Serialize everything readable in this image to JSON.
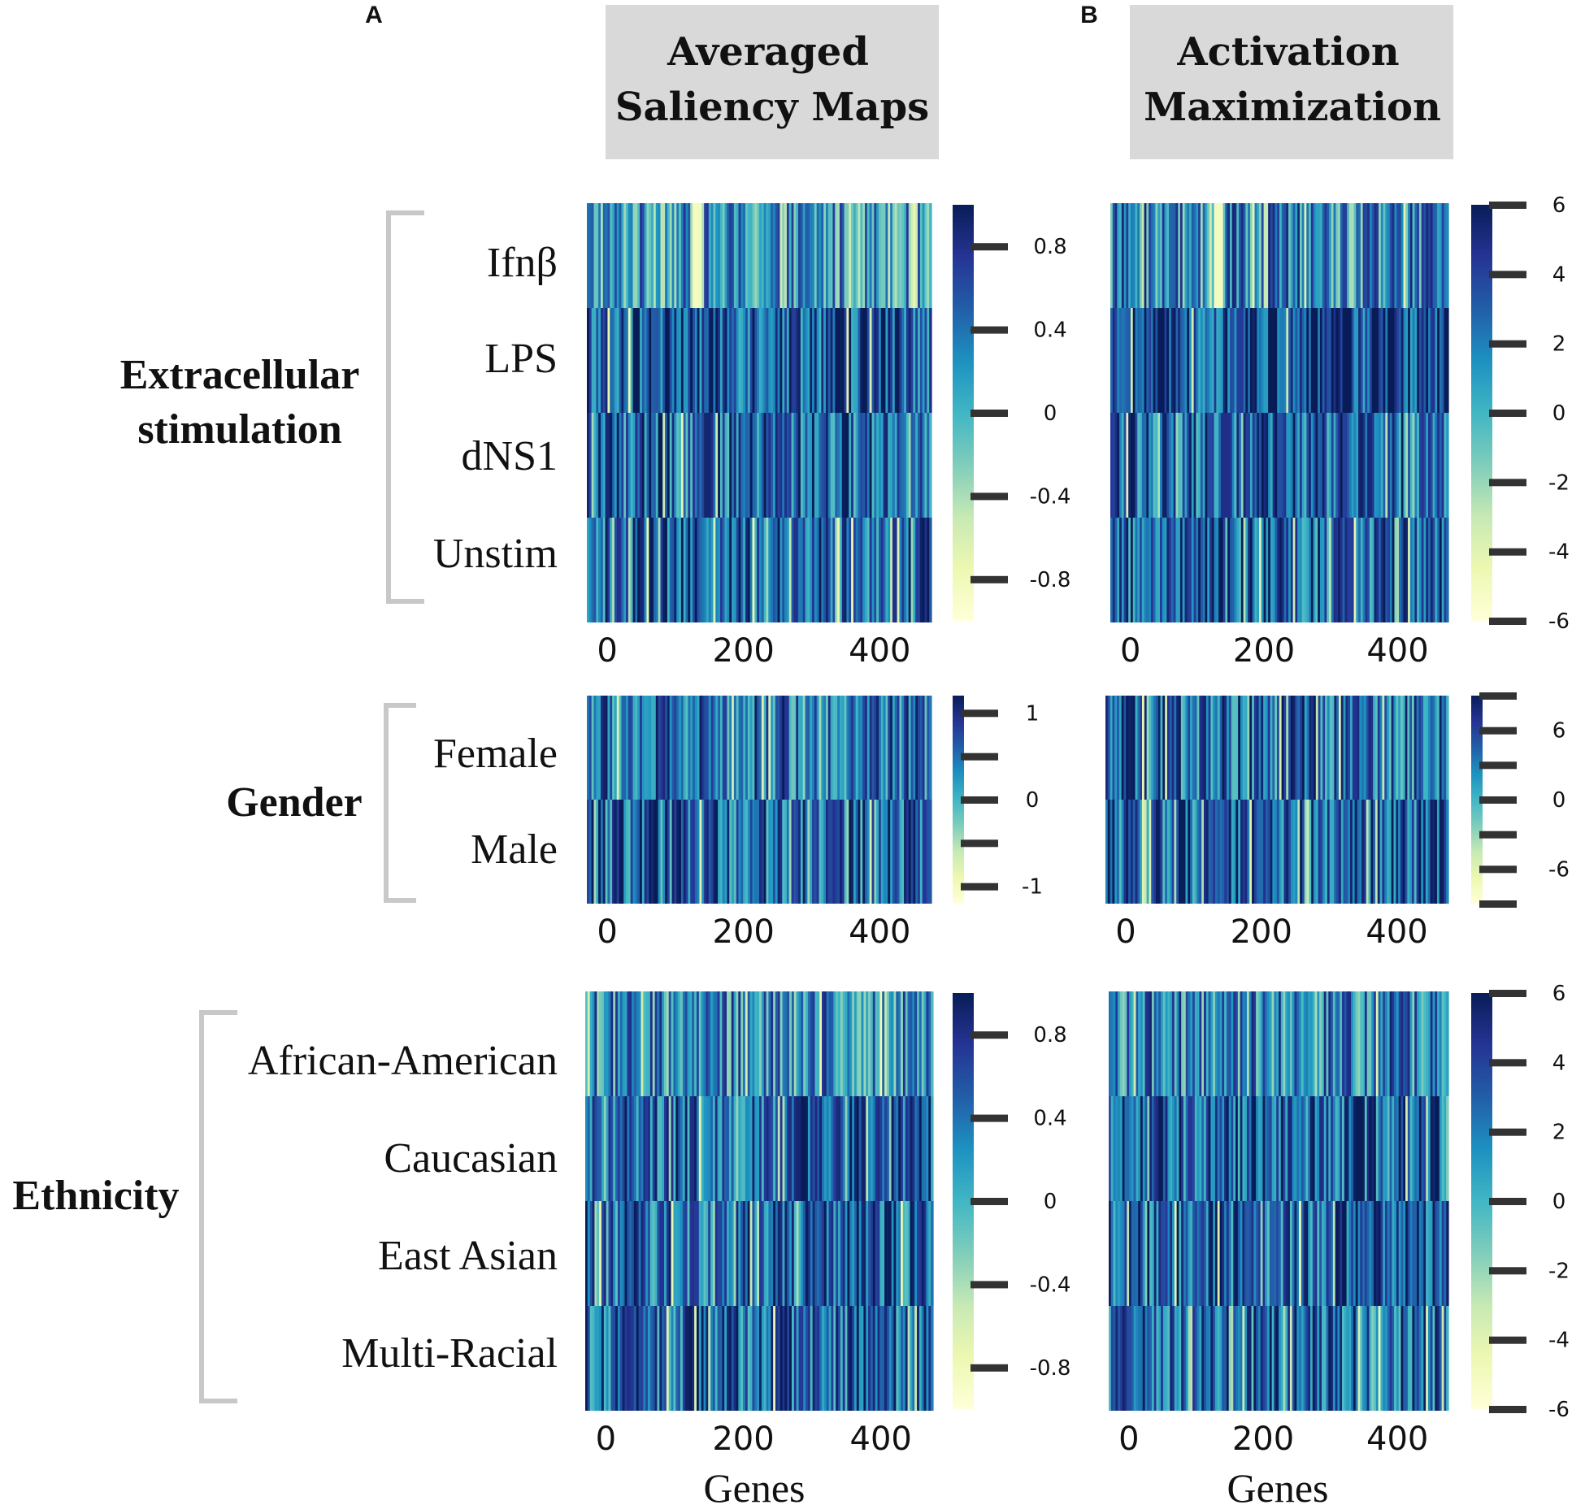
{
  "panel_letters": {
    "a": "A",
    "b": "B"
  },
  "column_titles": {
    "a_line1": "Averaged",
    "a_line2": "Saliency Maps",
    "b_line1": "Activation",
    "b_line2": "Maximization"
  },
  "groups": {
    "stim": "Extracellular stimulation",
    "stim_line1": "Extracellular",
    "stim_line2": "stimulation",
    "gender": "Gender",
    "ethnicity": "Ethnicity"
  },
  "colors": {
    "ylgnbu": [
      "#ffffd9",
      "#edf8b1",
      "#c7e9b4",
      "#7fcdbb",
      "#41b6c4",
      "#1d91c0",
      "#225ea8",
      "#253494",
      "#081d58"
    ],
    "bracket": "#c8c8c8",
    "title_box": "#d9d9d9"
  },
  "chart_data": [
    {
      "panel": "A",
      "type": "heatmap",
      "group": "Extracellular stimulation",
      "title": "Averaged Saliency Maps",
      "rows": [
        "Ifnβ",
        "LPS",
        "dNS1",
        "Unstim"
      ],
      "xlabel": "",
      "x_ticks": [
        0,
        200,
        400
      ],
      "x_range": [
        -30,
        476
      ],
      "n_genes": 476,
      "colorbar": {
        "min": -1.0,
        "max": 1.0,
        "ticks": [
          0.8,
          0.4,
          0,
          -0.4,
          -0.8
        ],
        "tick_labels": [
          "0.8",
          "0.4",
          "0",
          "-0.4",
          "-0.8"
        ]
      }
    },
    {
      "panel": "B",
      "type": "heatmap",
      "group": "Extracellular stimulation",
      "title": "Activation Maximization",
      "rows": [
        "Ifnβ",
        "LPS",
        "dNS1",
        "Unstim"
      ],
      "xlabel": "",
      "x_ticks": [
        0,
        200,
        400
      ],
      "x_range": [
        -30,
        476
      ],
      "n_genes": 476,
      "colorbar": {
        "min": -6,
        "max": 6,
        "ticks": [
          6,
          4,
          2,
          0,
          -2,
          -4,
          -6
        ],
        "tick_labels": [
          "6",
          "4",
          "2",
          "0",
          "-2",
          "-4",
          "-6"
        ]
      }
    },
    {
      "panel": "A",
      "type": "heatmap",
      "group": "Gender",
      "rows": [
        "Female",
        "Male"
      ],
      "xlabel": "",
      "x_ticks": [
        0,
        200,
        400
      ],
      "x_range": [
        -30,
        476
      ],
      "n_genes": 476,
      "colorbar": {
        "min": -1.2,
        "max": 1.2,
        "ticks": [
          1,
          0.5,
          0,
          -0.5,
          -1
        ],
        "tick_labels": [
          "1",
          "",
          "0",
          "",
          "-1"
        ]
      }
    },
    {
      "panel": "B",
      "type": "heatmap",
      "group": "Gender",
      "rows": [
        "Female",
        "Male"
      ],
      "xlabel": "",
      "x_ticks": [
        0,
        200,
        400
      ],
      "x_range": [
        -30,
        476
      ],
      "n_genes": 476,
      "colorbar": {
        "min": -9,
        "max": 9,
        "ticks": [
          9,
          6,
          3,
          0,
          -3,
          -6,
          -9
        ],
        "tick_labels": [
          "",
          "6",
          "",
          "0",
          "",
          "-6",
          ""
        ]
      }
    },
    {
      "panel": "A",
      "type": "heatmap",
      "group": "Ethnicity",
      "rows": [
        "African-American",
        "Caucasian",
        "East Asian",
        "Multi-Racial"
      ],
      "xlabel": "Genes",
      "x_ticks": [
        0,
        200,
        400
      ],
      "x_range": [
        -30,
        476
      ],
      "n_genes": 476,
      "colorbar": {
        "min": -1.0,
        "max": 1.0,
        "ticks": [
          0.8,
          0.4,
          0,
          -0.4,
          -0.8
        ],
        "tick_labels": [
          "0.8",
          "0.4",
          "0",
          "-0.4",
          "-0.8"
        ]
      }
    },
    {
      "panel": "B",
      "type": "heatmap",
      "group": "Ethnicity",
      "rows": [
        "African-American",
        "Caucasian",
        "East Asian",
        "Multi-Racial"
      ],
      "xlabel": "Genes",
      "x_ticks": [
        0,
        200,
        400
      ],
      "x_range": [
        -30,
        476
      ],
      "n_genes": 476,
      "colorbar": {
        "min": -6,
        "max": 6,
        "ticks": [
          6,
          4,
          2,
          0,
          -2,
          -4,
          -6
        ],
        "tick_labels": [
          "6",
          "4",
          "2",
          "0",
          "-2",
          "-4",
          "-6"
        ]
      }
    }
  ]
}
